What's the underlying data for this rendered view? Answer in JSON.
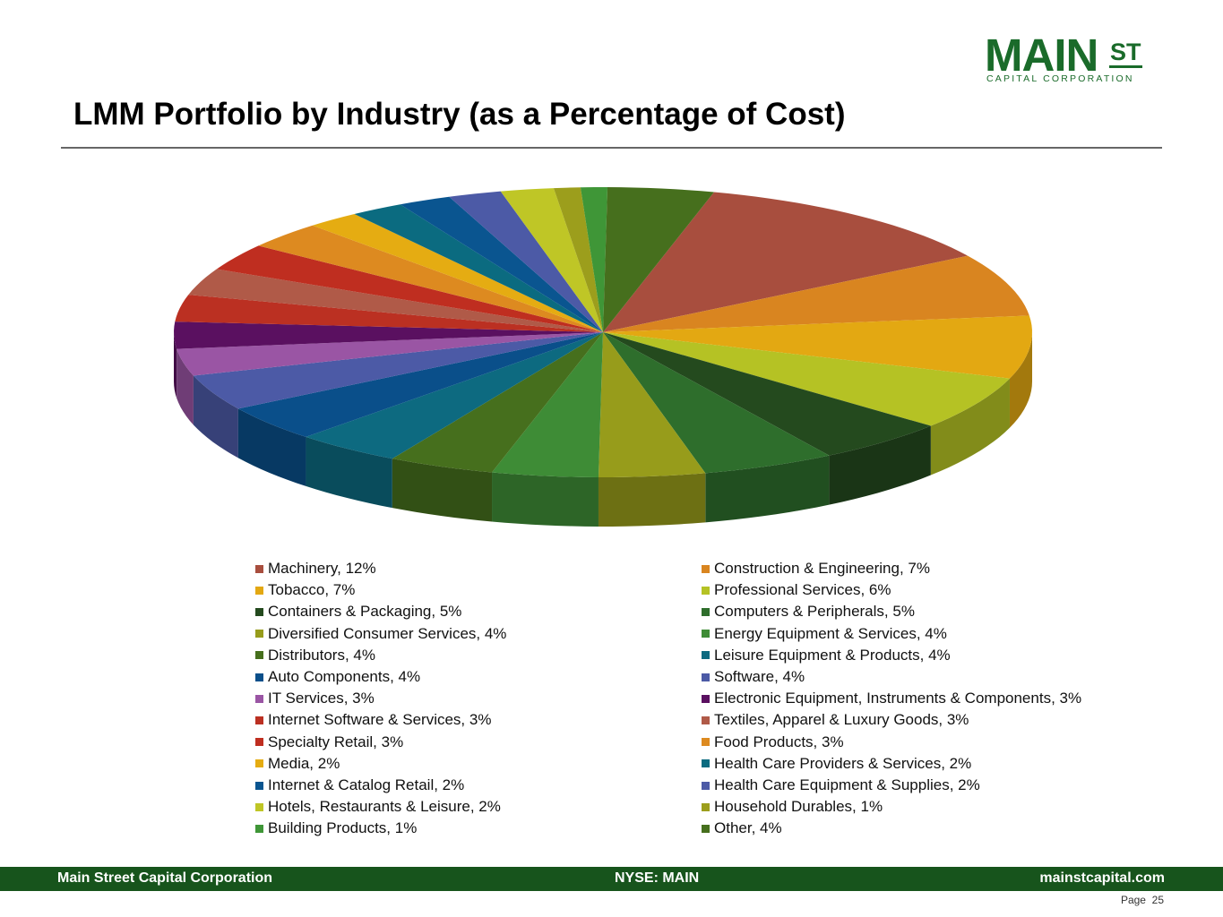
{
  "logo": {
    "main": "MAIN",
    "st": "ST",
    "sub": "CAPITAL CORPORATION"
  },
  "title": "LMM Portfolio by Industry (as a Percentage of Cost)",
  "footer": {
    "left": "Main Street Capital Corporation",
    "center": "NYSE: MAIN",
    "right": "mainstcapital.com",
    "page_label": "Page",
    "page_number": "25"
  },
  "chart_data": {
    "type": "pie",
    "style": "3d",
    "legend_position": "bottom",
    "slices": [
      {
        "label": "Machinery, 12%",
        "value": 12,
        "color": "#a84e3e"
      },
      {
        "label": "Construction & Engineering, 7%",
        "value": 7,
        "color": "#d98520"
      },
      {
        "label": "Tobacco, 7%",
        "value": 7,
        "color": "#e3a812"
      },
      {
        "label": "Professional Services, 6%",
        "value": 6,
        "color": "#b5c224"
      },
      {
        "label": "Containers & Packaging, 5%",
        "value": 5,
        "color": "#244a1e"
      },
      {
        "label": "Computers & Peripherals, 5%",
        "value": 5,
        "color": "#2e6e2c"
      },
      {
        "label": "Diversified Consumer Services, 4%",
        "value": 4,
        "color": "#979c1b"
      },
      {
        "label": "Energy Equipment & Services, 4%",
        "value": 4,
        "color": "#3e8c36"
      },
      {
        "label": "Distributors, 4%",
        "value": 4,
        "color": "#466f1d"
      },
      {
        "label": "Leisure Equipment & Products, 4%",
        "value": 4,
        "color": "#0d6a80"
      },
      {
        "label": "Auto Components, 4%",
        "value": 4,
        "color": "#0a4f8a"
      },
      {
        "label": "Software, 4%",
        "value": 4,
        "color": "#4c5aa6"
      },
      {
        "label": "IT Services, 3%",
        "value": 3,
        "color": "#9a55a4"
      },
      {
        "label": "Electronic Equipment, Instruments & Components, 3%",
        "value": 3,
        "color": "#5a1060"
      },
      {
        "label": "Internet Software & Services, 3%",
        "value": 3,
        "color": "#bb3022"
      },
      {
        "label": "Textiles, Apparel & Luxury Goods, 3%",
        "value": 3,
        "color": "#b05a48"
      },
      {
        "label": "Specialty Retail, 3%",
        "value": 3,
        "color": "#bf2e20"
      },
      {
        "label": "Food Products, 3%",
        "value": 3,
        "color": "#dd8a20"
      },
      {
        "label": "Media, 2%",
        "value": 2,
        "color": "#e5ac12"
      },
      {
        "label": "Health Care Providers & Services, 2%",
        "value": 2,
        "color": "#0b6b80"
      },
      {
        "label": "Internet & Catalog Retail, 2%",
        "value": 2,
        "color": "#0a5590"
      },
      {
        "label": "Health Care Equipment & Supplies, 2%",
        "value": 2,
        "color": "#4c5aa6"
      },
      {
        "label": "Hotels, Restaurants & Leisure, 2%",
        "value": 2,
        "color": "#bfc626"
      },
      {
        "label": "Household Durables, 1%",
        "value": 1,
        "color": "#9c9e1c"
      },
      {
        "label": "Building Products, 1%",
        "value": 1,
        "color": "#3f9637"
      },
      {
        "label": "Other, 4%",
        "value": 4,
        "color": "#466f1d"
      }
    ]
  }
}
